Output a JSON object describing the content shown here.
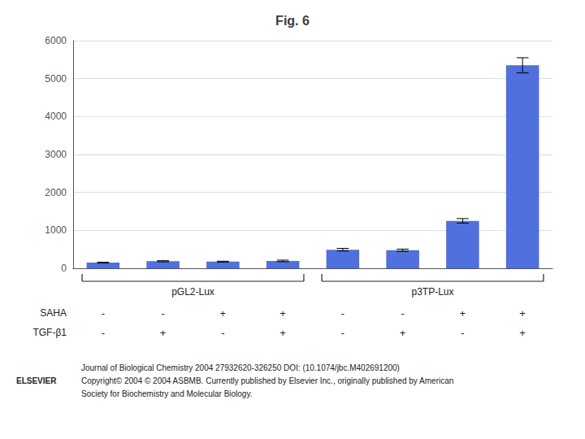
{
  "chart_data": {
    "type": "bar",
    "title": "Fig. 6",
    "categories": [
      null,
      null,
      null,
      null,
      null,
      null,
      null,
      null
    ],
    "values": [
      150,
      185,
      175,
      195,
      490,
      475,
      1250,
      5350
    ],
    "errors": [
      10,
      15,
      12,
      20,
      35,
      30,
      60,
      200
    ],
    "ylim": [
      0,
      6000
    ],
    "yticks": [
      0,
      1000,
      2000,
      3000,
      4000,
      5000,
      6000
    ],
    "grid": true,
    "tick_labels": "y",
    "group_labels": [
      "pGL2-Lux",
      "p3TP-Lux"
    ],
    "rows": [
      {
        "label": "SAHA",
        "signs": [
          "-",
          "-",
          "+",
          "+",
          "-",
          "-",
          "+",
          "+"
        ]
      },
      {
        "label": "TGF-β1",
        "signs": [
          "-",
          "+",
          "-",
          "+",
          "-",
          "+",
          "-",
          "+"
        ]
      }
    ],
    "footer": [
      "Journal of Biological Chemistry 2004 27932620-326250 DOI: (10.1074/jbc.M402691200)",
      "Copyright© 2004 © 2004 ASBMB. Currently published by Elsevier Inc., originally published by American",
      "Society for Biochemistry and Molecular Biology."
    ],
    "logo": "ELSEVIER"
  }
}
